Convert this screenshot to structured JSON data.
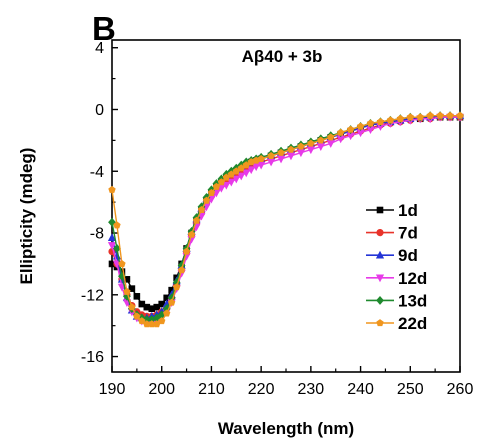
{
  "panel_label": "B",
  "chart_data": {
    "type": "line",
    "title": "Aβ40 + 3b",
    "xlabel": "Wavelength (nm)",
    "ylabel": "Ellipticity (mdeg)",
    "xlim": [
      190,
      260
    ],
    "ylim": [
      -17,
      4.5
    ],
    "xticks": [
      190,
      200,
      210,
      220,
      230,
      240,
      250,
      260
    ],
    "yticks": [
      4,
      0,
      -4,
      -8,
      -12,
      -16
    ],
    "legend_position": "right",
    "grid": false,
    "series": [
      {
        "name": "1d",
        "color": "#000000",
        "marker": "square",
        "x": [
          190,
          191,
          192,
          193,
          194,
          195,
          196,
          197,
          198,
          199,
          200,
          201,
          202,
          203,
          204,
          205,
          206,
          207,
          208,
          209,
          210,
          211,
          212,
          213,
          214,
          215,
          216,
          217,
          218,
          219,
          220,
          222,
          224,
          226,
          228,
          230,
          232,
          234,
          236,
          238,
          240,
          242,
          244,
          246,
          248,
          250,
          252,
          254,
          256,
          258,
          260
        ],
        "y": [
          -10.0,
          -10.2,
          -10.5,
          -11.0,
          -11.6,
          -12.1,
          -12.6,
          -12.8,
          -12.9,
          -12.8,
          -12.6,
          -12.2,
          -11.7,
          -10.9,
          -10.0,
          -9.0,
          -8.0,
          -7.2,
          -6.5,
          -5.9,
          -5.4,
          -5.0,
          -4.7,
          -4.4,
          -4.2,
          -4.0,
          -3.8,
          -3.6,
          -3.4,
          -3.3,
          -3.2,
          -3.0,
          -2.8,
          -2.6,
          -2.4,
          -2.2,
          -2.0,
          -1.8,
          -1.6,
          -1.4,
          -1.2,
          -1.0,
          -0.9,
          -0.8,
          -0.7,
          -0.6,
          -0.6,
          -0.5,
          -0.5,
          -0.5,
          -0.5
        ]
      },
      {
        "name": "7d",
        "color": "#e8332a",
        "marker": "circle",
        "x": [
          190,
          191,
          192,
          193,
          194,
          195,
          196,
          197,
          198,
          199,
          200,
          201,
          202,
          203,
          204,
          205,
          206,
          207,
          208,
          209,
          210,
          211,
          212,
          213,
          214,
          215,
          216,
          217,
          218,
          219,
          220,
          222,
          224,
          226,
          228,
          230,
          232,
          234,
          236,
          238,
          240,
          242,
          244,
          246,
          248,
          250,
          252,
          254,
          256,
          258,
          260
        ],
        "y": [
          -9.2,
          -10.0,
          -11.0,
          -12.0,
          -12.7,
          -13.1,
          -13.3,
          -13.4,
          -13.4,
          -13.3,
          -13.1,
          -12.8,
          -12.2,
          -11.4,
          -10.4,
          -9.3,
          -8.2,
          -7.4,
          -6.7,
          -6.1,
          -5.6,
          -5.2,
          -4.9,
          -4.6,
          -4.4,
          -4.2,
          -4.0,
          -3.8,
          -3.6,
          -3.5,
          -3.4,
          -3.2,
          -3.0,
          -2.8,
          -2.6,
          -2.4,
          -2.2,
          -2.0,
          -1.8,
          -1.6,
          -1.4,
          -1.2,
          -1.0,
          -0.9,
          -0.8,
          -0.7,
          -0.6,
          -0.6,
          -0.5,
          -0.5,
          -0.5
        ]
      },
      {
        "name": "9d",
        "color": "#2334d6",
        "marker": "triangle-up",
        "x": [
          190,
          191,
          192,
          193,
          194,
          195,
          196,
          197,
          198,
          199,
          200,
          201,
          202,
          203,
          204,
          205,
          206,
          207,
          208,
          209,
          210,
          211,
          212,
          213,
          214,
          215,
          216,
          217,
          218,
          219,
          220,
          222,
          224,
          226,
          228,
          230,
          232,
          234,
          236,
          238,
          240,
          242,
          244,
          246,
          248,
          250,
          252,
          254,
          256,
          258,
          260
        ],
        "y": [
          -8.3,
          -9.5,
          -11.0,
          -12.2,
          -13.0,
          -13.4,
          -13.5,
          -13.5,
          -13.4,
          -13.3,
          -13.1,
          -12.6,
          -12.0,
          -11.1,
          -10.1,
          -9.0,
          -7.9,
          -7.1,
          -6.4,
          -5.8,
          -5.3,
          -4.9,
          -4.6,
          -4.3,
          -4.1,
          -3.9,
          -3.7,
          -3.5,
          -3.4,
          -3.3,
          -3.2,
          -3.0,
          -2.8,
          -2.6,
          -2.4,
          -2.2,
          -2.0,
          -1.8,
          -1.6,
          -1.4,
          -1.2,
          -1.0,
          -0.9,
          -0.8,
          -0.7,
          -0.6,
          -0.5,
          -0.5,
          -0.4,
          -0.4,
          -0.4
        ]
      },
      {
        "name": "12d",
        "color": "#e73ae8",
        "marker": "triangle-down",
        "x": [
          190,
          191,
          192,
          193,
          194,
          195,
          196,
          197,
          198,
          199,
          200,
          201,
          202,
          203,
          204,
          205,
          206,
          207,
          208,
          209,
          210,
          211,
          212,
          213,
          214,
          215,
          216,
          217,
          218,
          219,
          220,
          222,
          224,
          226,
          228,
          230,
          232,
          234,
          236,
          238,
          240,
          242,
          244,
          246,
          248,
          250,
          252,
          254,
          256,
          258,
          260
        ],
        "y": [
          -8.8,
          -10.0,
          -11.5,
          -12.5,
          -13.1,
          -13.5,
          -13.7,
          -13.8,
          -13.8,
          -13.7,
          -13.5,
          -13.1,
          -12.5,
          -11.6,
          -10.6,
          -9.5,
          -8.4,
          -7.6,
          -6.9,
          -6.3,
          -5.8,
          -5.4,
          -5.1,
          -4.9,
          -4.7,
          -4.5,
          -4.3,
          -4.1,
          -3.9,
          -3.7,
          -3.6,
          -3.4,
          -3.2,
          -3.0,
          -2.8,
          -2.6,
          -2.4,
          -2.2,
          -1.9,
          -1.7,
          -1.5,
          -1.3,
          -1.1,
          -0.9,
          -0.8,
          -0.7,
          -0.6,
          -0.6,
          -0.5,
          -0.5,
          -0.5
        ]
      },
      {
        "name": "13d",
        "color": "#1f8a2e",
        "marker": "diamond",
        "x": [
          190,
          191,
          192,
          193,
          194,
          195,
          196,
          197,
          198,
          199,
          200,
          201,
          202,
          203,
          204,
          205,
          206,
          207,
          208,
          209,
          210,
          211,
          212,
          213,
          214,
          215,
          216,
          217,
          218,
          219,
          220,
          222,
          224,
          226,
          228,
          230,
          232,
          234,
          236,
          238,
          240,
          242,
          244,
          246,
          248,
          250,
          252,
          254,
          256,
          258,
          260
        ],
        "y": [
          -7.3,
          -9.0,
          -10.8,
          -12.1,
          -12.9,
          -13.3,
          -13.5,
          -13.6,
          -13.6,
          -13.5,
          -13.3,
          -12.9,
          -12.2,
          -11.2,
          -10.1,
          -9.0,
          -7.9,
          -7.0,
          -6.3,
          -5.7,
          -5.2,
          -4.8,
          -4.5,
          -4.2,
          -4.0,
          -3.8,
          -3.6,
          -3.4,
          -3.3,
          -3.2,
          -3.1,
          -2.9,
          -2.7,
          -2.5,
          -2.3,
          -2.1,
          -1.9,
          -1.7,
          -1.5,
          -1.3,
          -1.1,
          -0.9,
          -0.8,
          -0.7,
          -0.6,
          -0.5,
          -0.5,
          -0.4,
          -0.4,
          -0.4,
          -0.4
        ]
      },
      {
        "name": "22d",
        "color": "#f0961e",
        "marker": "pentagon",
        "x": [
          190,
          191,
          192,
          193,
          194,
          195,
          196,
          197,
          198,
          199,
          200,
          201,
          202,
          203,
          204,
          205,
          206,
          207,
          208,
          209,
          210,
          211,
          212,
          213,
          214,
          215,
          216,
          217,
          218,
          219,
          220,
          222,
          224,
          226,
          228,
          230,
          232,
          234,
          236,
          238,
          240,
          242,
          244,
          246,
          248,
          250,
          252,
          254,
          256,
          258,
          260
        ],
        "y": [
          -5.2,
          -7.5,
          -10.0,
          -11.8,
          -12.8,
          -13.4,
          -13.7,
          -13.9,
          -13.9,
          -13.9,
          -13.7,
          -13.2,
          -12.5,
          -11.5,
          -10.4,
          -9.2,
          -8.1,
          -7.2,
          -6.5,
          -5.9,
          -5.4,
          -5.0,
          -4.7,
          -4.4,
          -4.2,
          -4.0,
          -3.8,
          -3.6,
          -3.4,
          -3.3,
          -3.2,
          -3.0,
          -2.8,
          -2.6,
          -2.4,
          -2.2,
          -2.0,
          -1.8,
          -1.5,
          -1.3,
          -1.1,
          -0.9,
          -0.8,
          -0.7,
          -0.6,
          -0.5,
          -0.5,
          -0.4,
          -0.4,
          -0.4,
          -0.4
        ]
      }
    ]
  }
}
